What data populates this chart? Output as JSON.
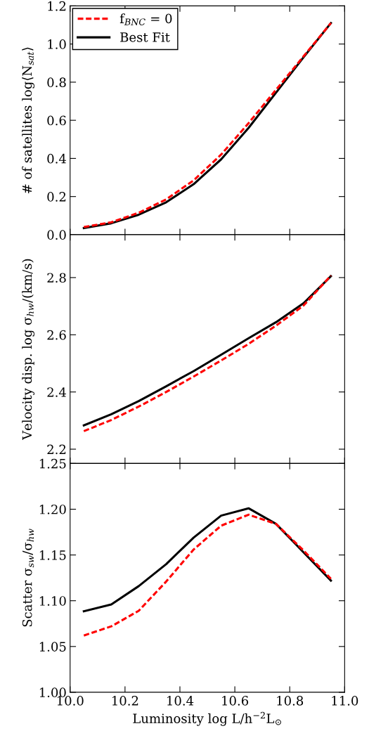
{
  "chart_data": [
    {
      "type": "line",
      "ylabel": "# of satellites log⟨N$_{sat}$⟩",
      "x": [
        10.05,
        10.15,
        10.25,
        10.35,
        10.45,
        10.55,
        10.65,
        10.75,
        10.85,
        10.95
      ],
      "series": [
        {
          "name": "f$_{BNC}$ = 0",
          "color": "#ff0000",
          "line_style": "dashed",
          "values": [
            0.04,
            0.065,
            0.115,
            0.185,
            0.285,
            0.42,
            0.585,
            0.76,
            0.935,
            1.11
          ]
        },
        {
          "name": "Best Fit",
          "color": "#000000",
          "line_style": "solid",
          "values": [
            0.035,
            0.06,
            0.105,
            0.17,
            0.265,
            0.395,
            0.56,
            0.745,
            0.93,
            1.11
          ]
        }
      ],
      "xlim": [
        10.0,
        11.0
      ],
      "xticks": [
        10.0,
        10.2,
        10.4,
        10.6,
        10.8,
        11.0
      ],
      "ylim": [
        0.0,
        1.2
      ],
      "yticks": [
        {
          "value": 0,
          "label": "0.0"
        },
        0.2,
        0.4,
        0.6,
        0.8,
        {
          "value": 1,
          "label": "1.0"
        },
        1.2
      ],
      "tick_labels": "y",
      "legend": "top left"
    },
    {
      "type": "line",
      "ylabel": "Velocity disp. log σ$_{hw}$/(km/s)",
      "x": [
        10.05,
        10.15,
        10.25,
        10.35,
        10.45,
        10.55,
        10.65,
        10.75,
        10.85,
        10.95
      ],
      "series": [
        {
          "color": "#ff0000",
          "line_style": "dashed",
          "values": [
            2.263,
            2.302,
            2.349,
            2.4,
            2.454,
            2.51,
            2.568,
            2.632,
            2.702,
            2.807
          ]
        },
        {
          "color": "#000000",
          "line_style": "solid",
          "values": [
            2.283,
            2.322,
            2.368,
            2.42,
            2.473,
            2.53,
            2.588,
            2.644,
            2.71,
            2.805
          ]
        }
      ],
      "xlim": [
        10.0,
        11.0
      ],
      "xticks": [
        10.0,
        10.2,
        10.4,
        10.6,
        10.8,
        11.0
      ],
      "ylim": [
        2.15,
        2.95
      ],
      "yticks": [
        2.2,
        2.4,
        2.6,
        2.8
      ],
      "tick_labels": "y"
    },
    {
      "type": "line",
      "ylabel": "Scatter σ$_{sw}$/σ$_{hw}$",
      "xlabel": "Luminosity log L/h$^{−2}$L$_{⊙}$",
      "x": [
        10.05,
        10.15,
        10.25,
        10.35,
        10.45,
        10.55,
        10.65,
        10.75,
        10.85,
        10.95
      ],
      "series": [
        {
          "color": "#ff0000",
          "line_style": "dashed",
          "values": [
            1.062,
            1.072,
            1.089,
            1.121,
            1.156,
            1.182,
            1.194,
            1.184,
            1.155,
            1.124
          ]
        },
        {
          "color": "#000000",
          "line_style": "solid",
          "values": [
            1.0885,
            1.096,
            1.116,
            1.14,
            1.169,
            1.193,
            1.201,
            1.184,
            1.153,
            1.122
          ]
        }
      ],
      "xlim": [
        10.0,
        11.0
      ],
      "xticks": [
        {
          "value": 10,
          "label": "10.0"
        },
        10.2,
        10.4,
        10.6,
        10.8,
        {
          "value": 11,
          "label": "11.0"
        }
      ],
      "ylim": [
        1.0,
        1.25
      ],
      "yticks": [
        {
          "value": 1.0,
          "label": "1.00"
        },
        {
          "value": 1.05,
          "label": "1.05"
        },
        {
          "value": 1.1,
          "label": "1.10"
        },
        {
          "value": 1.15,
          "label": "1.15"
        },
        {
          "value": 1.2,
          "label": "1.20"
        },
        {
          "value": 1.25,
          "label": "1.25"
        }
      ]
    }
  ]
}
